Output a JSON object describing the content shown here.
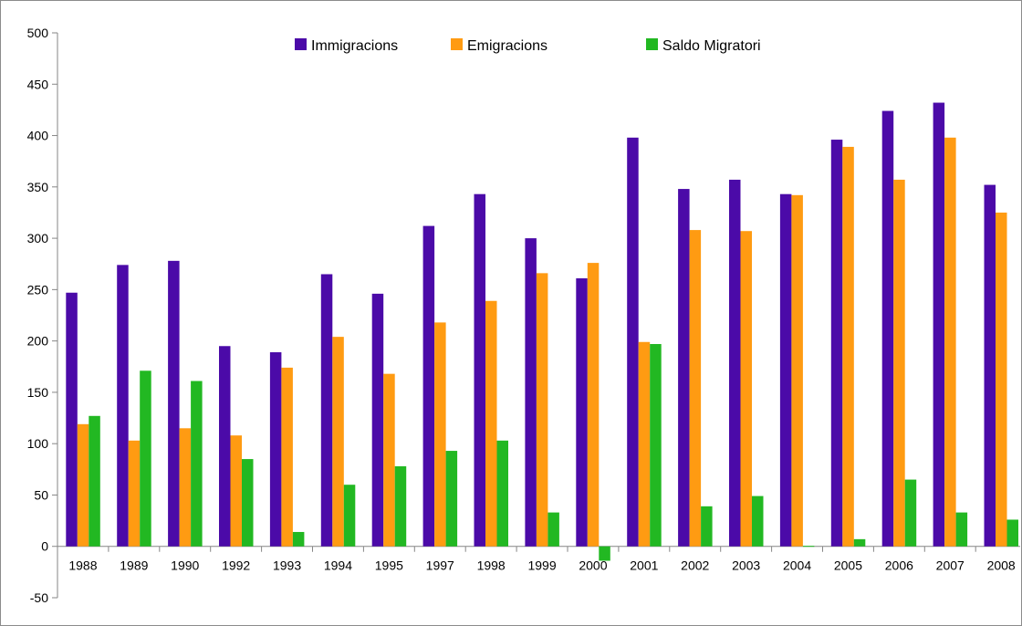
{
  "chart_data": {
    "type": "bar",
    "title": "",
    "xlabel": "",
    "ylabel": "",
    "ylim": [
      -50,
      500
    ],
    "yticks": [
      "500",
      "450",
      "400",
      "350",
      "300",
      "250",
      "200",
      "150",
      "100",
      "50",
      "0",
      "-50"
    ],
    "ytick_values": [
      500,
      450,
      400,
      350,
      300,
      250,
      200,
      150,
      100,
      50,
      0,
      -50
    ],
    "categories": [
      "1988",
      "1989",
      "1990",
      "1992",
      "1993",
      "1994",
      "1995",
      "1997",
      "1998",
      "1999",
      "2000",
      "2001",
      "2002",
      "2003",
      "2004",
      "2005",
      "2006",
      "2007",
      "2008"
    ],
    "series": [
      {
        "name": "Immigracions",
        "color": "#4b0aa8",
        "values": [
          247,
          274,
          278,
          195,
          189,
          265,
          246,
          312,
          343,
          300,
          261,
          398,
          348,
          357,
          343,
          396,
          424,
          432,
          352
        ]
      },
      {
        "name": "Emigracions",
        "color": "#ff9b12",
        "values": [
          119,
          103,
          115,
          108,
          174,
          204,
          168,
          218,
          239,
          266,
          276,
          199,
          308,
          307,
          342,
          389,
          357,
          398,
          325
        ]
      },
      {
        "name": "Saldo Migratori",
        "color": "#22b822",
        "values": [
          127,
          171,
          161,
          85,
          14,
          60,
          78,
          93,
          103,
          33,
          -14,
          197,
          39,
          49,
          0.5,
          7,
          65,
          33,
          26
        ]
      }
    ],
    "legend_position": "top-center",
    "grid": false
  }
}
